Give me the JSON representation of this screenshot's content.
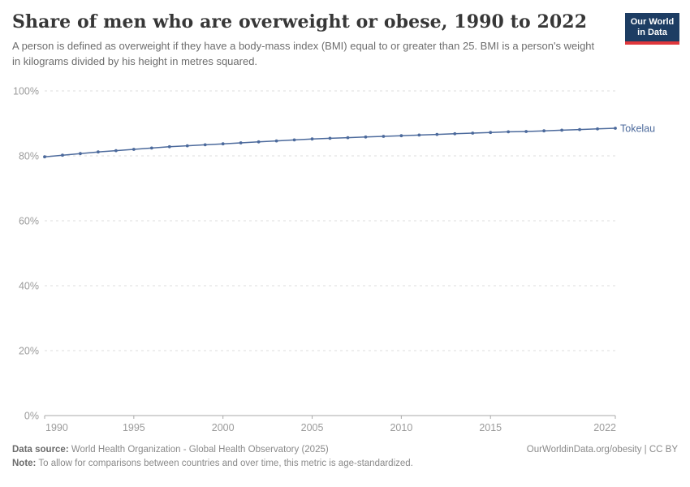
{
  "header": {
    "title": "Share of men who are overweight or obese, 1990 to 2022",
    "subtitle": "A person is defined as overweight if they have a body-mass index (BMI) equal to or greater than 25. BMI is a person's weight in kilograms divided by his height in metres squared.",
    "logo": {
      "line1": "Our World",
      "line2": "in Data"
    }
  },
  "chart_data": {
    "type": "line",
    "title": "Share of men who are overweight or obese, 1990 to 2022",
    "xlabel": "",
    "ylabel": "",
    "xlim": [
      1990,
      2022
    ],
    "ylim": [
      0,
      100
    ],
    "grid": true,
    "legend_position": "end-of-line",
    "yticks": [
      0,
      20,
      40,
      60,
      80,
      100
    ],
    "ytick_labels": [
      "0%",
      "20%",
      "40%",
      "60%",
      "80%",
      "100%"
    ],
    "xticks": [
      1990,
      1995,
      2000,
      2005,
      2010,
      2015,
      2022
    ],
    "xtick_labels": [
      "1990",
      "1995",
      "2000",
      "2005",
      "2010",
      "2015",
      "2022"
    ],
    "x": [
      1990,
      1991,
      1992,
      1993,
      1994,
      1995,
      1996,
      1997,
      1998,
      1999,
      2000,
      2001,
      2002,
      2003,
      2004,
      2005,
      2006,
      2007,
      2008,
      2009,
      2010,
      2011,
      2012,
      2013,
      2014,
      2015,
      2016,
      2017,
      2018,
      2019,
      2020,
      2021,
      2022
    ],
    "series": [
      {
        "name": "Tokelau",
        "color": "#4c6a9c",
        "values": [
          79.7,
          80.2,
          80.7,
          81.2,
          81.6,
          82.0,
          82.4,
          82.8,
          83.1,
          83.4,
          83.7,
          84.0,
          84.3,
          84.6,
          84.9,
          85.2,
          85.4,
          85.6,
          85.8,
          86.0,
          86.2,
          86.4,
          86.6,
          86.8,
          87.0,
          87.2,
          87.4,
          87.5,
          87.7,
          87.9,
          88.1,
          88.3,
          88.5
        ]
      }
    ]
  },
  "colors": {
    "line": "#4c6a9c",
    "gridline": "#dddddd",
    "axis": "#a9a9a9",
    "tick_text": "#9b9b9b",
    "logo_bg": "#1d3d63",
    "logo_bar": "#e0373c"
  },
  "footer": {
    "datasource_label": "Data source:",
    "datasource_text": " World Health Organization - Global Health Observatory (2025)",
    "cc": "OurWorldinData.org/obesity | CC BY",
    "note_label": "Note:",
    "note_text": " To allow for comparisons between countries and over time, this metric is age-standardized."
  }
}
